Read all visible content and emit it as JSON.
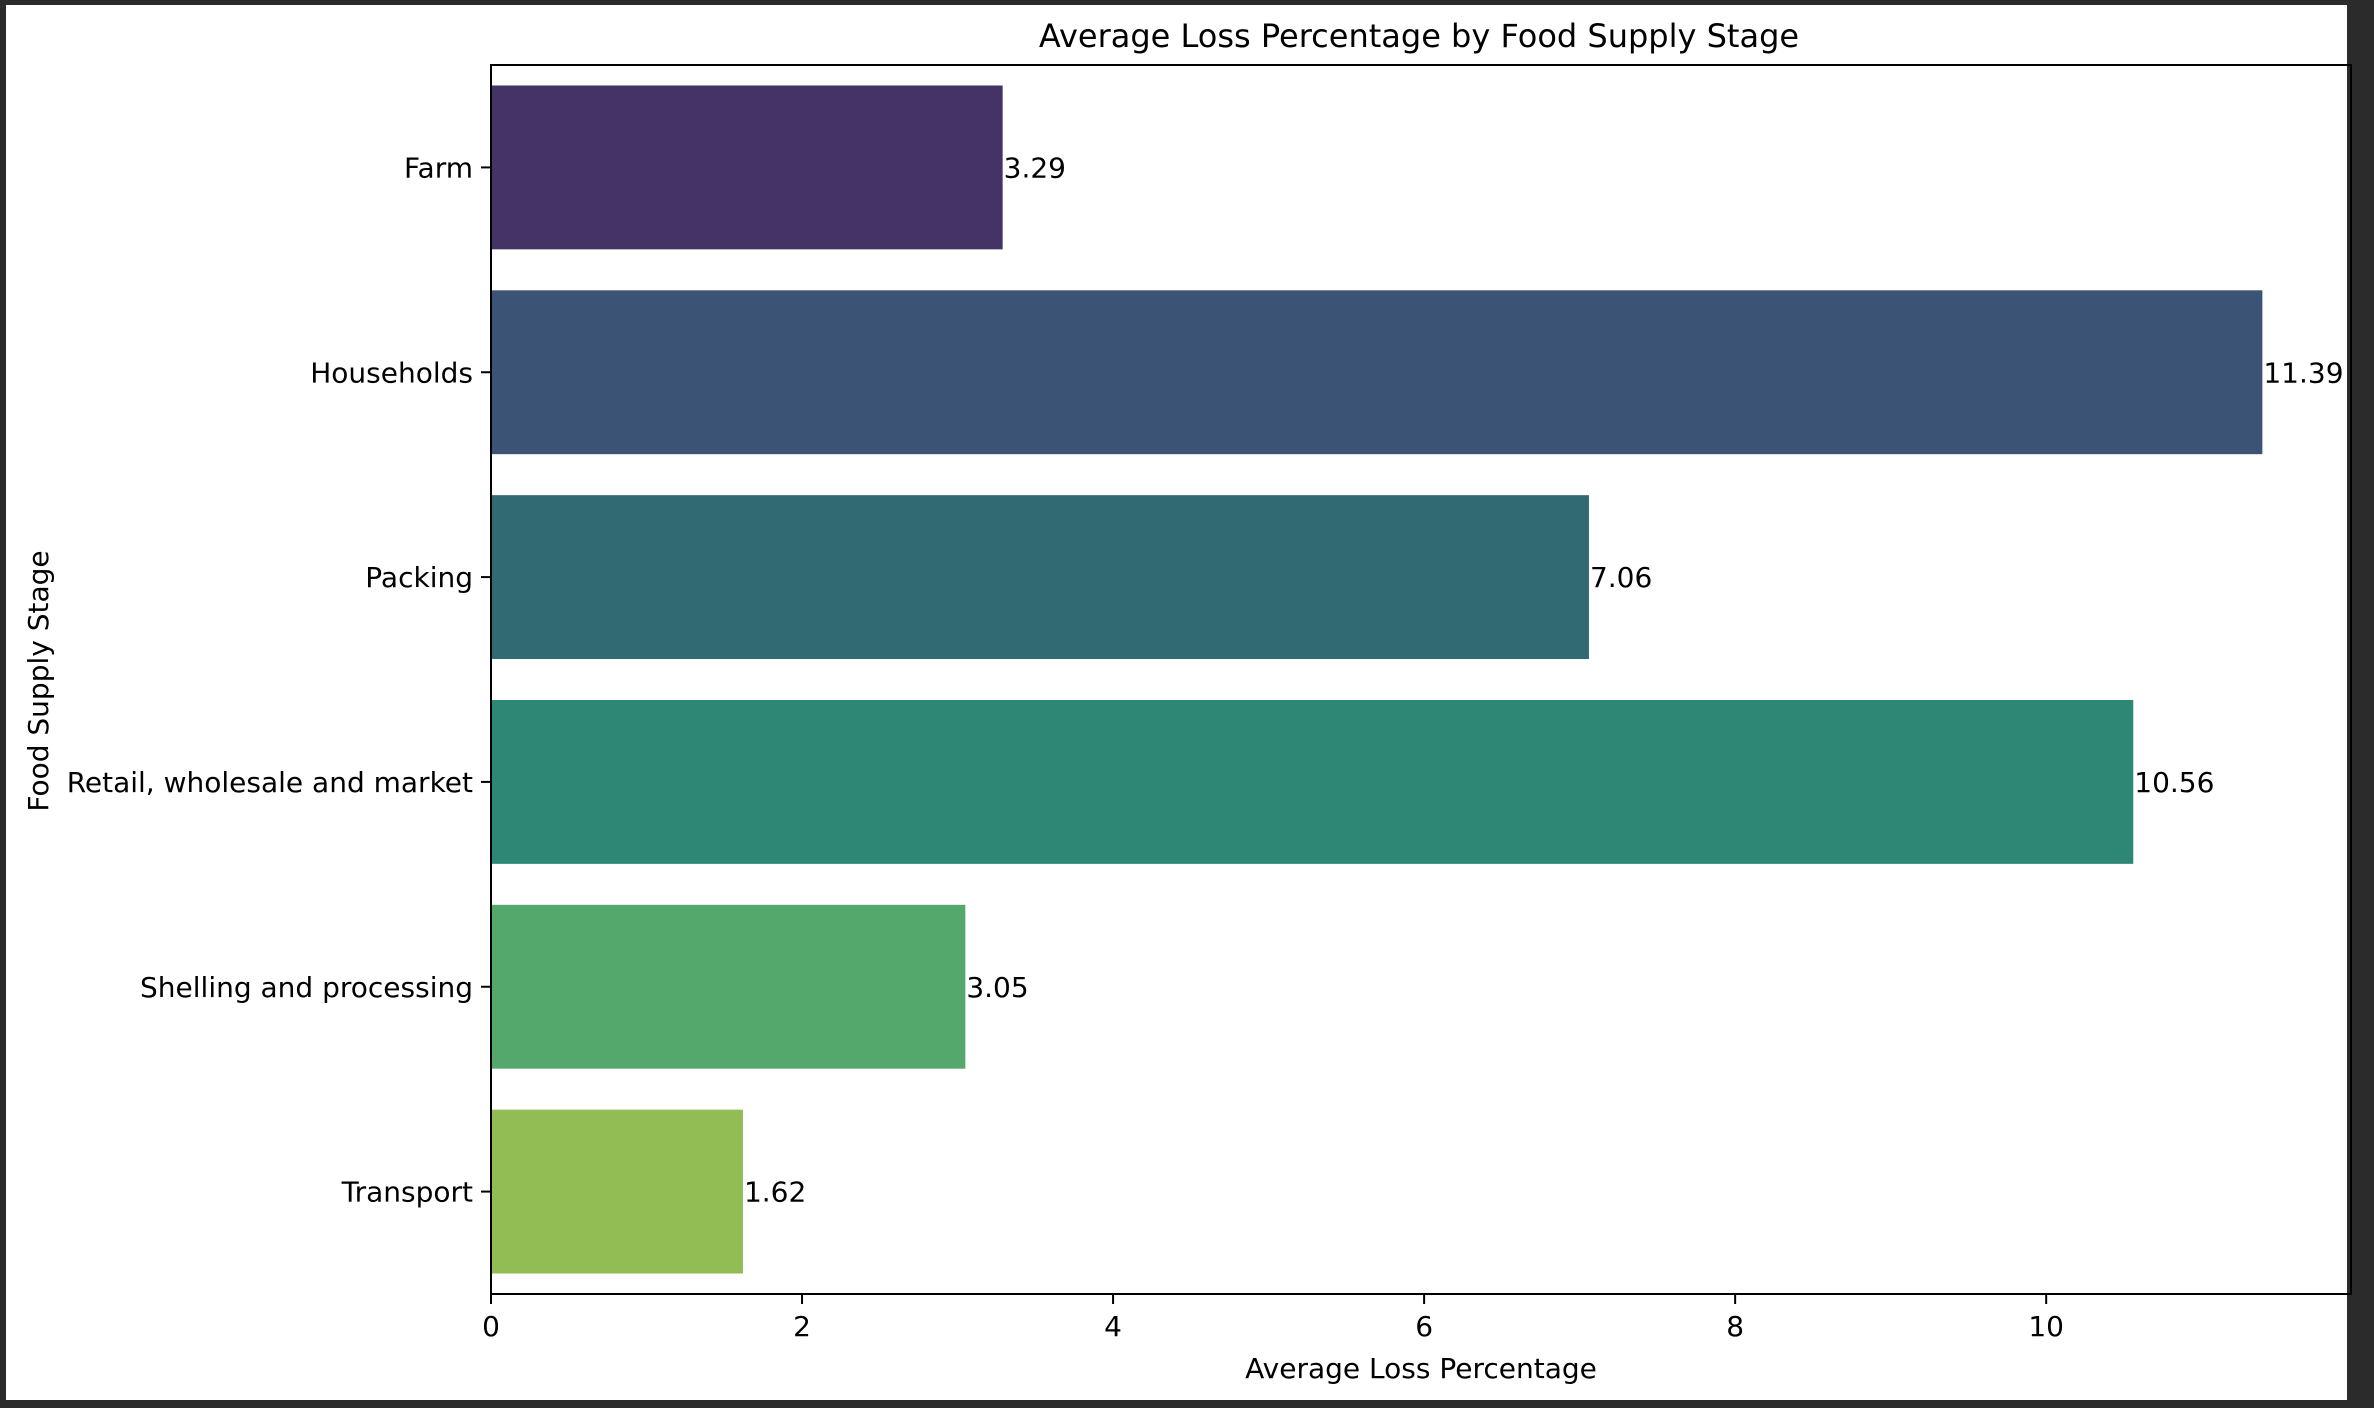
{
  "chart_data": {
    "type": "bar",
    "orientation": "horizontal",
    "title": "Average Loss Percentage by Food Supply Stage",
    "xlabel": "Average Loss Percentage",
    "ylabel": "Food Supply Stage",
    "categories": [
      "Farm",
      "Households",
      "Packing",
      "Retail, wholesale and market",
      "Shelling and processing",
      "Transport"
    ],
    "values": [
      3.29,
      11.39,
      7.06,
      10.56,
      3.05,
      1.62
    ],
    "data_labels": [
      "3.29",
      "11.39",
      "7.06",
      "10.56",
      "3.05",
      "1.62"
    ],
    "bar_colors": [
      "#443466",
      "#3b5475",
      "#316a73",
      "#2e8675",
      "#54a86c",
      "#92bd54"
    ],
    "xticks": [
      "0",
      "2",
      "4",
      "6",
      "8",
      "10"
    ],
    "xlim": [
      0,
      11.96
    ],
    "grid": false,
    "legend": "none"
  }
}
